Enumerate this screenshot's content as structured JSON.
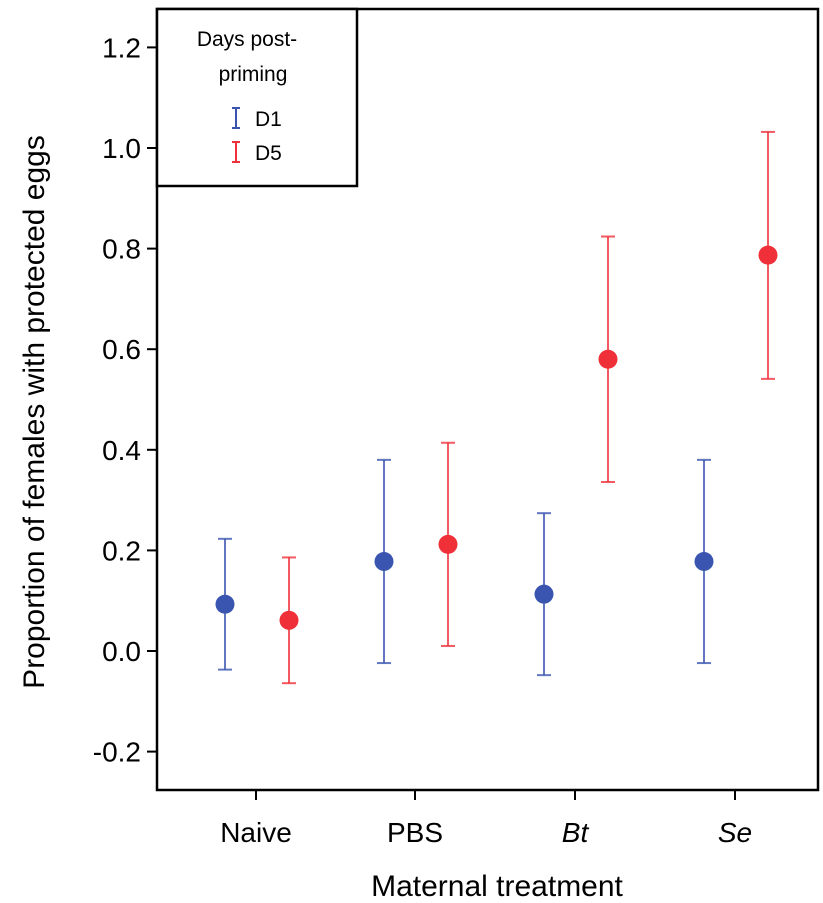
{
  "chart_data": {
    "type": "scatter",
    "subtype": "point-with-error-bars",
    "xlabel": "Maternal treatment",
    "ylabel": "Proportion of females with protected eggs",
    "categories": [
      "Naive",
      "PBS",
      "Bt",
      "Se"
    ],
    "italic_categories": [
      "Bt",
      "Se"
    ],
    "ylim": [
      -0.3,
      1.27
    ],
    "yticks": [
      -0.2,
      0.0,
      0.2,
      0.4,
      0.6,
      0.8,
      1.0,
      1.2
    ],
    "ytick_labels": [
      "-0.2",
      "0.0",
      "0.2",
      "0.4",
      "0.6",
      "0.8",
      "1.0",
      "1.2"
    ],
    "grid": false,
    "legend": {
      "title_line1": "Days post-",
      "title_line2": "priming",
      "placement": "top-left"
    },
    "series": [
      {
        "name": "D1",
        "color": "#3a55b0",
        "values": [
          0.093,
          0.178,
          0.113,
          0.178
        ],
        "lower": [
          -0.037,
          -0.024,
          -0.048,
          -0.024
        ],
        "upper": [
          0.223,
          0.38,
          0.274,
          0.38
        ]
      },
      {
        "name": "D5",
        "color": "#ef3038",
        "values": [
          0.061,
          0.212,
          0.58,
          0.787
        ],
        "lower": [
          -0.064,
          0.01,
          0.336,
          0.541
        ],
        "upper": [
          0.186,
          0.414,
          0.824,
          1.032
        ]
      }
    ]
  }
}
